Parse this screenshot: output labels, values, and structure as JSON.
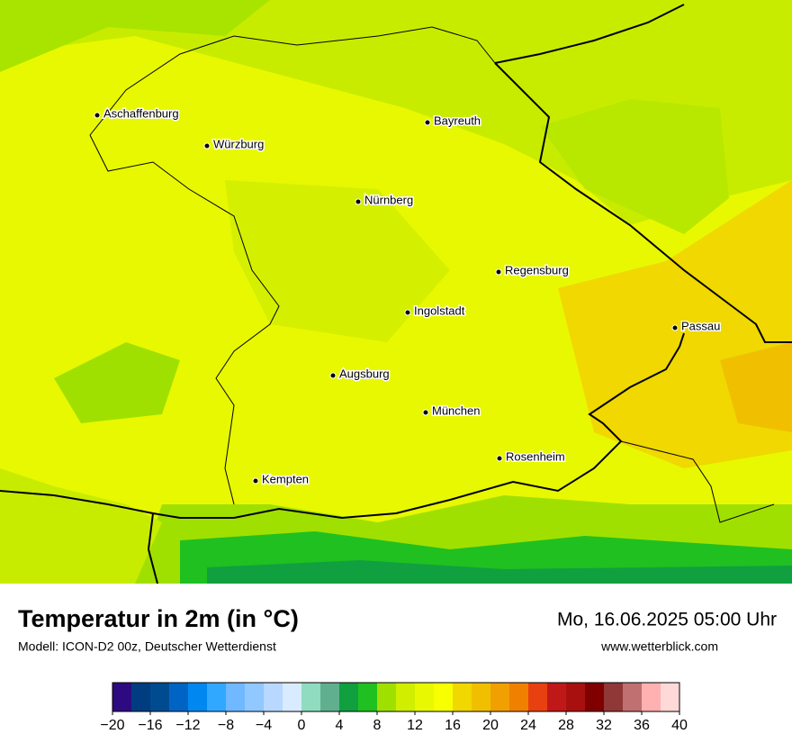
{
  "header": {
    "title": "Temperatur in 2m (in °C)",
    "subtitle": "Modell: ICON-D2 00z, Deutscher Wetterdienst",
    "date": "Mo, 16.06.2025 05:00 Uhr",
    "website": "www.wetterblick.com"
  },
  "cities": [
    "Aschaffenburg",
    "Würzburg",
    "Bayreuth",
    "Nürnberg",
    "Regensburg",
    "Ingolstadt",
    "Passau",
    "Augsburg",
    "München",
    "Rosenheim",
    "Kempten"
  ],
  "colorbar": {
    "bins": [
      -20,
      -18,
      -16,
      -14,
      -12,
      -10,
      -8,
      -6,
      -4,
      -2,
      0,
      2,
      4,
      6,
      8,
      10,
      12,
      14,
      16,
      18,
      20,
      22,
      24,
      26,
      28,
      30,
      32,
      34,
      36,
      38,
      40
    ],
    "colors": [
      "#2e0a80",
      "#003c80",
      "#004a90",
      "#0064c4",
      "#0088f0",
      "#30a8ff",
      "#70b8ff",
      "#90c8ff",
      "#b8d8ff",
      "#d8ebff",
      "#90dcc0",
      "#60b090",
      "#10a040",
      "#20c020",
      "#a0e000",
      "#d0ee00",
      "#e8f800",
      "#f8ff00",
      "#f0d800",
      "#f0c000",
      "#f0a000",
      "#f08000",
      "#e84010",
      "#c01818",
      "#a81010",
      "#800000",
      "#903838",
      "#c07070",
      "#ffb0b0",
      "#ffd8d8"
    ],
    "ticks": [
      {
        "value": -20,
        "label": "−20"
      },
      {
        "value": -16,
        "label": "−16"
      },
      {
        "value": -12,
        "label": "−12"
      },
      {
        "value": -8,
        "label": "−8"
      },
      {
        "value": -4,
        "label": "−4"
      },
      0,
      4,
      8,
      12,
      16,
      20,
      24,
      28,
      32,
      36,
      40
    ]
  }
}
